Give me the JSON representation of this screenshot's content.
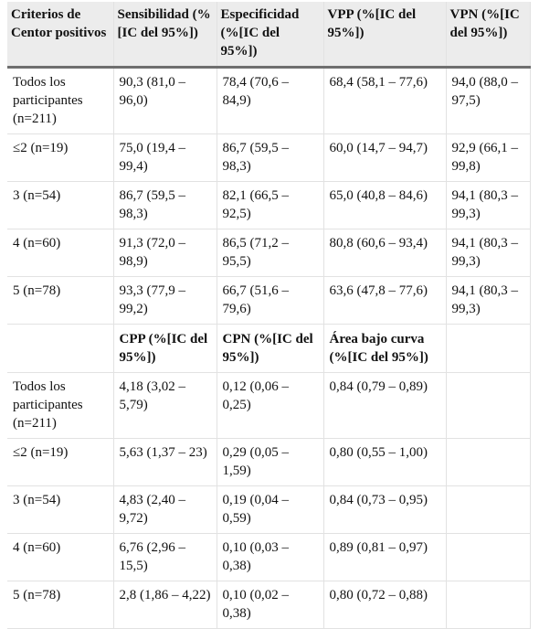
{
  "header": [
    "Criterios de Centor positivos",
    "Sensibilidad (% [IC del 95%])",
    "Especificidad (%[IC del 95%])",
    "VPP (%[IC del 95%])",
    "VPN (%[IC del 95%])"
  ],
  "rows1": [
    [
      "Todos los participantes (n=211)",
      "90,3 (81,0 – 96,0)",
      "78,4 (70,6  – 84,9)",
      "68,4 (58,1 – 77,6)",
      "94,0 (88,0 – 97,5)"
    ],
    [
      "≤2 (n=19)",
      "75,0 (19,4 – 99,4)",
      "86,7 (59,5 – 98,3)",
      "60,0 (14,7 – 94,7)",
      "92,9 (66,1 – 99,8)"
    ],
    [
      "3 (n=54)",
      "86,7 (59,5 – 98,3)",
      "82,1 (66,5 – 92,5)",
      "65,0 (40,8 – 84,6)",
      "94,1 (80,3 – 99,3)"
    ],
    [
      "4 (n=60)",
      "91,3 (72,0 – 98,9)",
      "86,5 (71,2 – 95,5)",
      "80,8 (60,6 – 93,4)",
      "94,1 (80,3 – 99,3)"
    ],
    [
      "5 (n=78)",
      "93,3 (77,9 – 99,2)",
      "66,7 (51,6 – 79,6)",
      "63,6 (47,8 – 77,6)",
      "94,1 (80,3 – 99,3)"
    ]
  ],
  "subheader": [
    "CPP (%[IC del 95%])",
    "CPN (%[IC del 95%])",
    "Área bajo curva (%[IC del 95%])"
  ],
  "rows2": [
    [
      "Todos los participantes (n=211)",
      "4,18 (3,02 – 5,79)",
      "0,12 (0,06 – 0,25)",
      "0,84 (0,79  – 0,89)"
    ],
    [
      "≤2 (n=19)",
      "5,63 (1,37 – 23)",
      "0,29 (0,05 – 1,59)",
      "0,80 (0,55 – 1,00)"
    ],
    [
      "3 (n=54)",
      "4,83 (2,40 – 9,72)",
      "0,19 (0,04 – 0,59)",
      "0,84 (0,73 – 0,95)"
    ],
    [
      "4 (n=60)",
      "6,76 (2,96 – 15,5)",
      "0,10 (0,03 – 0,38)",
      "0,89 (0,81 – 0,97)"
    ],
    [
      "5 (n=78)",
      "2,8 (1,86 – 4,22)",
      "0,10 (0,02 – 0,38)",
      "0,80 (0,72 – 0,88)"
    ]
  ]
}
